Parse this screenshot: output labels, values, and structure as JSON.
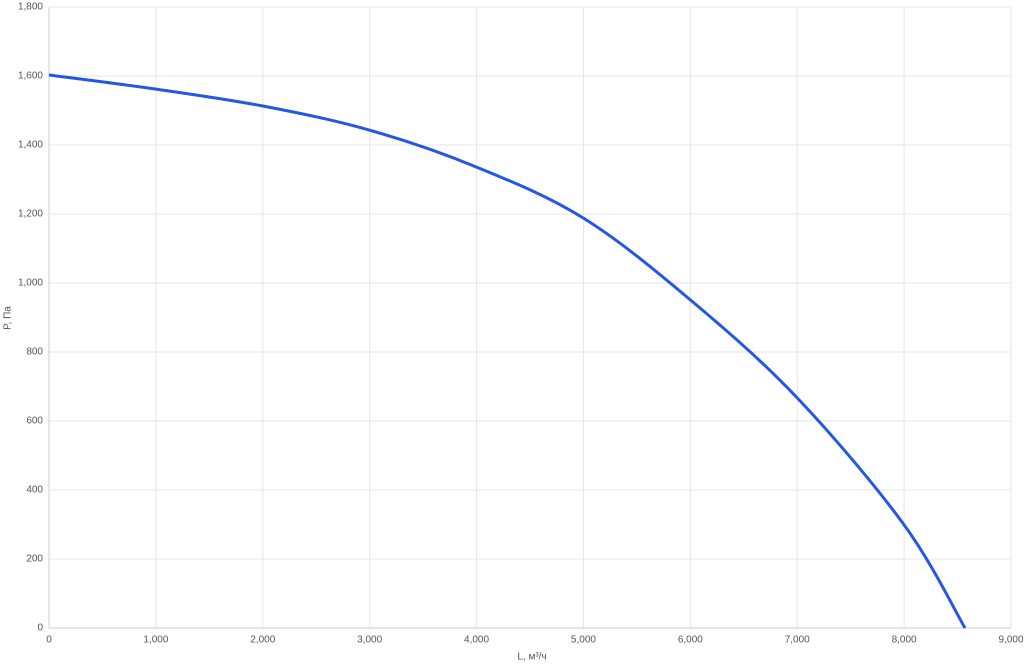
{
  "chart_data": {
    "type": "line",
    "x_label": "L, м³/ч",
    "y_label": "P, Па",
    "x": [
      0,
      1000,
      2000,
      3000,
      4000,
      5000,
      6000,
      7000,
      8000,
      8570
    ],
    "series": [
      {
        "color": "#2457e6",
        "values": [
          1603,
          1562,
          1513,
          1443,
          1336,
          1188,
          951,
          667,
          299,
          0
        ]
      }
    ],
    "xlim": [
      0,
      9000
    ],
    "xticks": [
      0,
      {
        "value": 1000,
        "label": "1,000"
      },
      {
        "value": 2000,
        "label": "2,000"
      },
      {
        "value": 3000,
        "label": "3,000"
      },
      {
        "value": 4000,
        "label": "4,000"
      },
      {
        "value": 5000,
        "label": "5,000"
      },
      {
        "value": 6000,
        "label": "6,000"
      },
      {
        "value": 7000,
        "label": "7,000"
      },
      {
        "value": 8000,
        "label": "8,000"
      },
      {
        "value": 9000,
        "label": "9,000"
      }
    ],
    "ylim": [
      0,
      1800
    ],
    "yticks": [
      0,
      200,
      400,
      600,
      800,
      {
        "value": 1000,
        "label": "1,000"
      },
      {
        "value": 1200,
        "label": "1,200"
      },
      {
        "value": 1400,
        "label": "1,400"
      },
      {
        "value": 1600,
        "label": "1,600"
      },
      {
        "value": 1800,
        "label": "1,800"
      }
    ],
    "grid": true
  }
}
